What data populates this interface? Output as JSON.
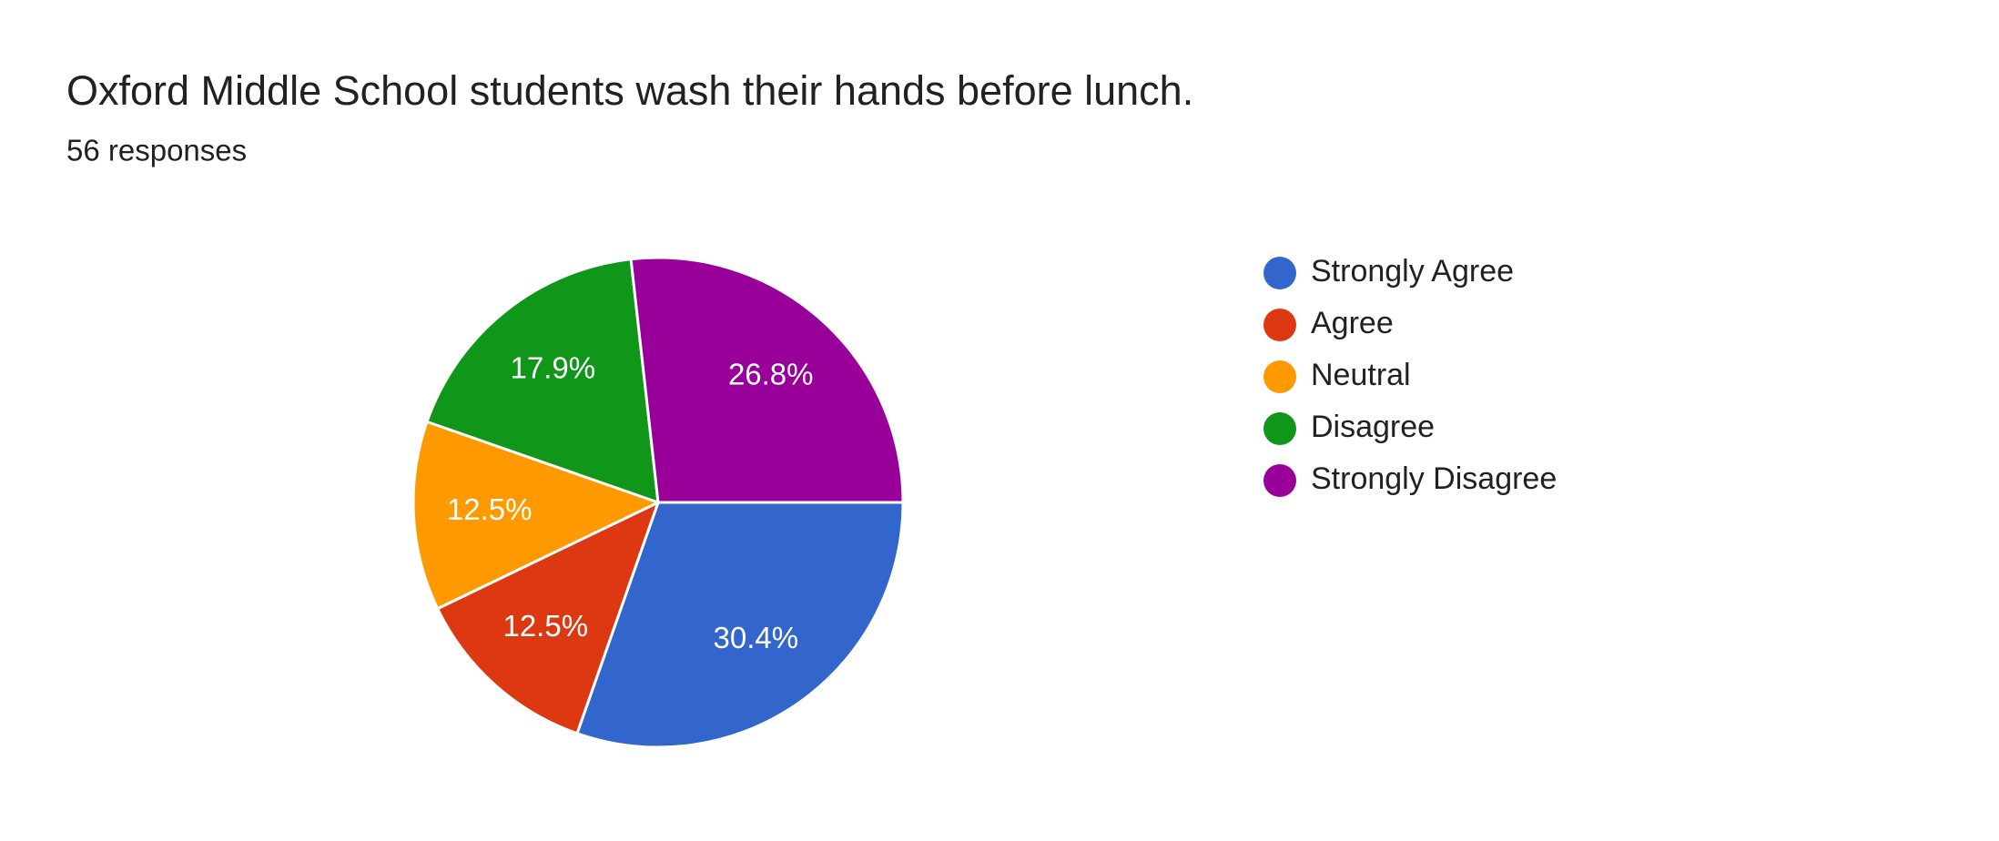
{
  "chart_data": {
    "type": "pie",
    "title": "Oxford Middle School students wash their hands before lunch.",
    "subtitle": "56 responses",
    "categories": [
      "Strongly Agree",
      "Agree",
      "Neutral",
      "Disagree",
      "Strongly Disagree"
    ],
    "values": [
      30.4,
      12.5,
      12.5,
      17.9,
      26.8
    ],
    "value_labels": [
      "30.4%",
      "12.5%",
      "12.5%",
      "17.9%",
      "26.8%"
    ],
    "colors": [
      "#3366cc",
      "#dc3912",
      "#ff9900",
      "#109618",
      "#990099"
    ],
    "legend": "right"
  }
}
